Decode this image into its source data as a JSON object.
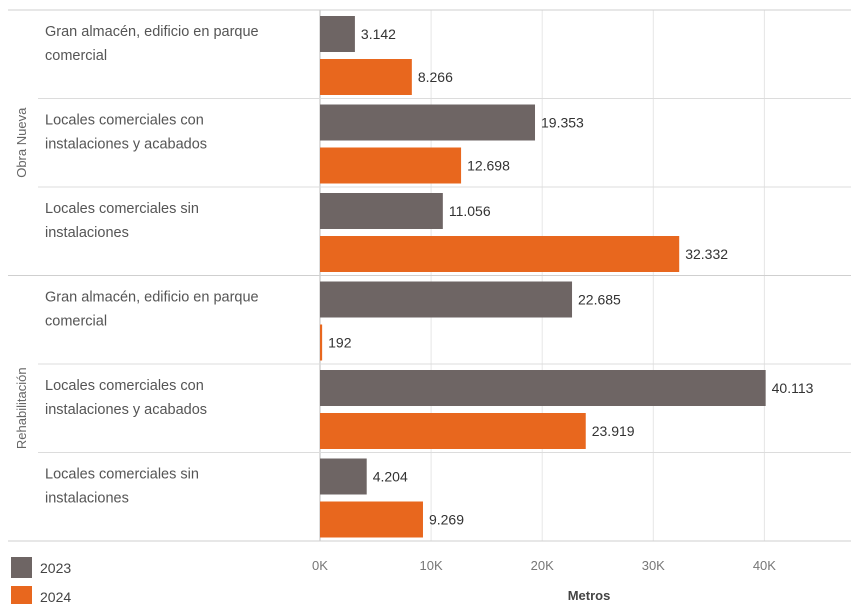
{
  "chart_data": {
    "type": "bar",
    "orientation": "horizontal",
    "groups": [
      {
        "name": "Obra Nueva",
        "categories": [
          {
            "label_lines": [
              "Gran almacén, edificio en parque",
              "comercial"
            ],
            "values": [
              3142,
              8266
            ],
            "labels": [
              "3.142",
              "8.266"
            ]
          },
          {
            "label_lines": [
              "Locales comerciales con",
              "instalaciones y acabados"
            ],
            "values": [
              19353,
              12698
            ],
            "labels": [
              "19.353",
              "12.698"
            ]
          },
          {
            "label_lines": [
              "Locales comerciales sin",
              "instalaciones"
            ],
            "values": [
              11056,
              32332
            ],
            "labels": [
              "11.056",
              "32.332"
            ]
          }
        ]
      },
      {
        "name": "Rehabilitación",
        "categories": [
          {
            "label_lines": [
              "Gran almacén, edificio en parque",
              "comercial"
            ],
            "values": [
              22685,
              192
            ],
            "labels": [
              "22.685",
              "192"
            ]
          },
          {
            "label_lines": [
              "Locales comerciales con",
              "instalaciones y acabados"
            ],
            "values": [
              40113,
              23919
            ],
            "labels": [
              "40.113",
              "23.919"
            ]
          },
          {
            "label_lines": [
              "Locales comerciales sin",
              "instalaciones"
            ],
            "values": [
              4204,
              9269
            ],
            "labels": [
              "4.204",
              "9.269"
            ]
          }
        ]
      }
    ],
    "series": [
      {
        "name": "2023",
        "color": "#6e6564"
      },
      {
        "name": "2024",
        "color": "#e8671e"
      }
    ],
    "xlabel": "Metros",
    "xlim": [
      0,
      45000
    ],
    "xticks": [
      0,
      10000,
      20000,
      30000,
      40000
    ],
    "xtick_labels": [
      "0K",
      "10K",
      "20K",
      "30K",
      "40K"
    ],
    "grid": true,
    "legend_position": "bottom-left"
  }
}
